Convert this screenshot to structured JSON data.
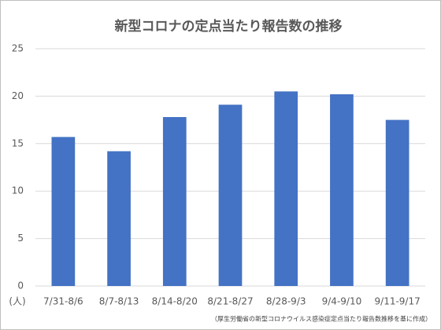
{
  "chart_data": {
    "type": "bar",
    "title": "新型コロナの定点当たり報告数の推移",
    "unit_label": "(人)",
    "source": "（厚生労働省の新型コロナウイルス感染症定点当たり報告数推移を基に作成）",
    "categories": [
      "7/31-8/6",
      "8/7-8/13",
      "8/14-8/20",
      "8/21-8/27",
      "8/28-9/3",
      "9/4-9/10",
      "9/11-9/17"
    ],
    "values": [
      15.7,
      14.2,
      17.8,
      19.1,
      20.5,
      20.2,
      17.5
    ],
    "color": "#4472c4",
    "ylim": [
      0,
      25
    ],
    "yticks": [
      0,
      5,
      10,
      15,
      20,
      25
    ],
    "grid": true
  }
}
